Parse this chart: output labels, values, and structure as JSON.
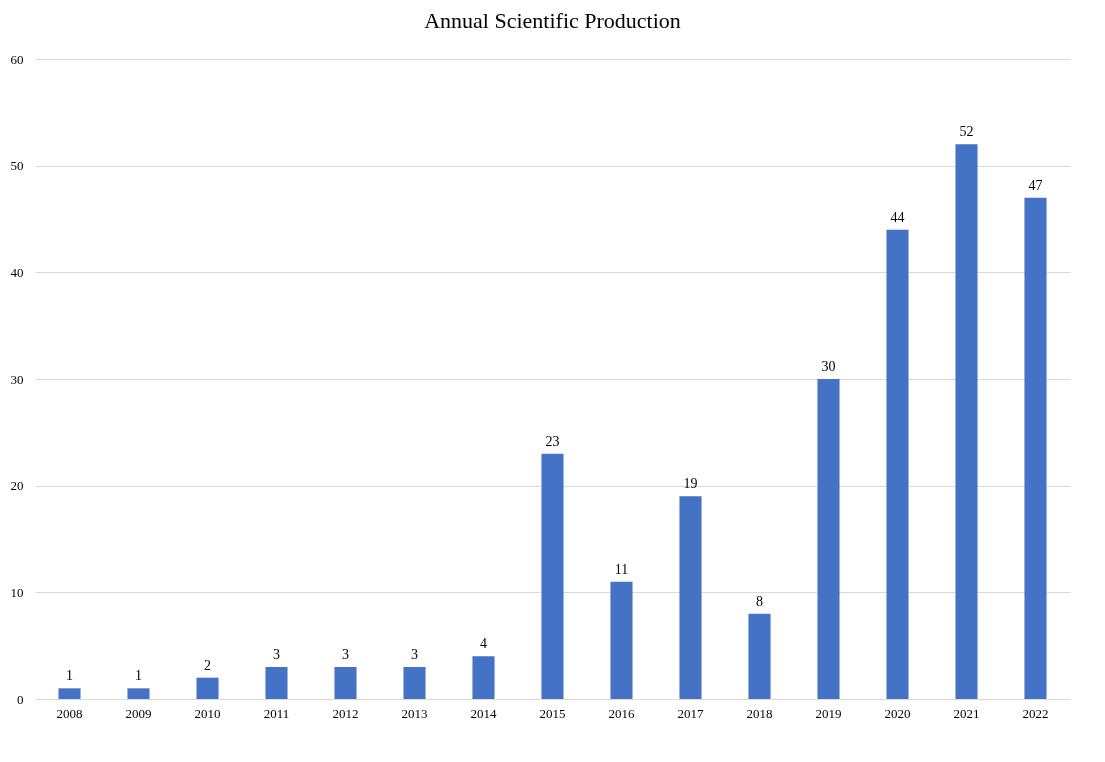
{
  "chart_data": {
    "type": "bar",
    "title": "Annual Scientific Production",
    "categories": [
      "2008",
      "2009",
      "2010",
      "2011",
      "2012",
      "2013",
      "2014",
      "2015",
      "2016",
      "2017",
      "2018",
      "2019",
      "2020",
      "2021",
      "2022"
    ],
    "values": [
      1,
      1,
      2,
      3,
      3,
      3,
      4,
      23,
      11,
      19,
      8,
      30,
      44,
      52,
      47
    ],
    "color": "#4472c4",
    "ylim": [
      0,
      60
    ],
    "yticks": [
      0,
      10,
      20,
      30,
      40,
      50,
      60
    ],
    "grid": "y",
    "data_labels": true
  }
}
